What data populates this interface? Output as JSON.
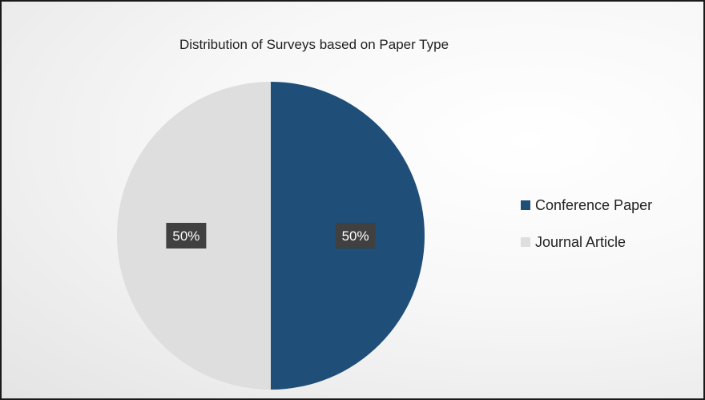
{
  "chart_data": {
    "type": "pie",
    "title": "Distribution of Surveys based on Paper Type",
    "slices": [
      {
        "label": "Conference Paper",
        "value": 50,
        "display": "50%",
        "color": "#1f4e79"
      },
      {
        "label": "Journal Article",
        "value": 50,
        "display": "50%",
        "color": "#dedede"
      }
    ],
    "legend_position": "right"
  }
}
